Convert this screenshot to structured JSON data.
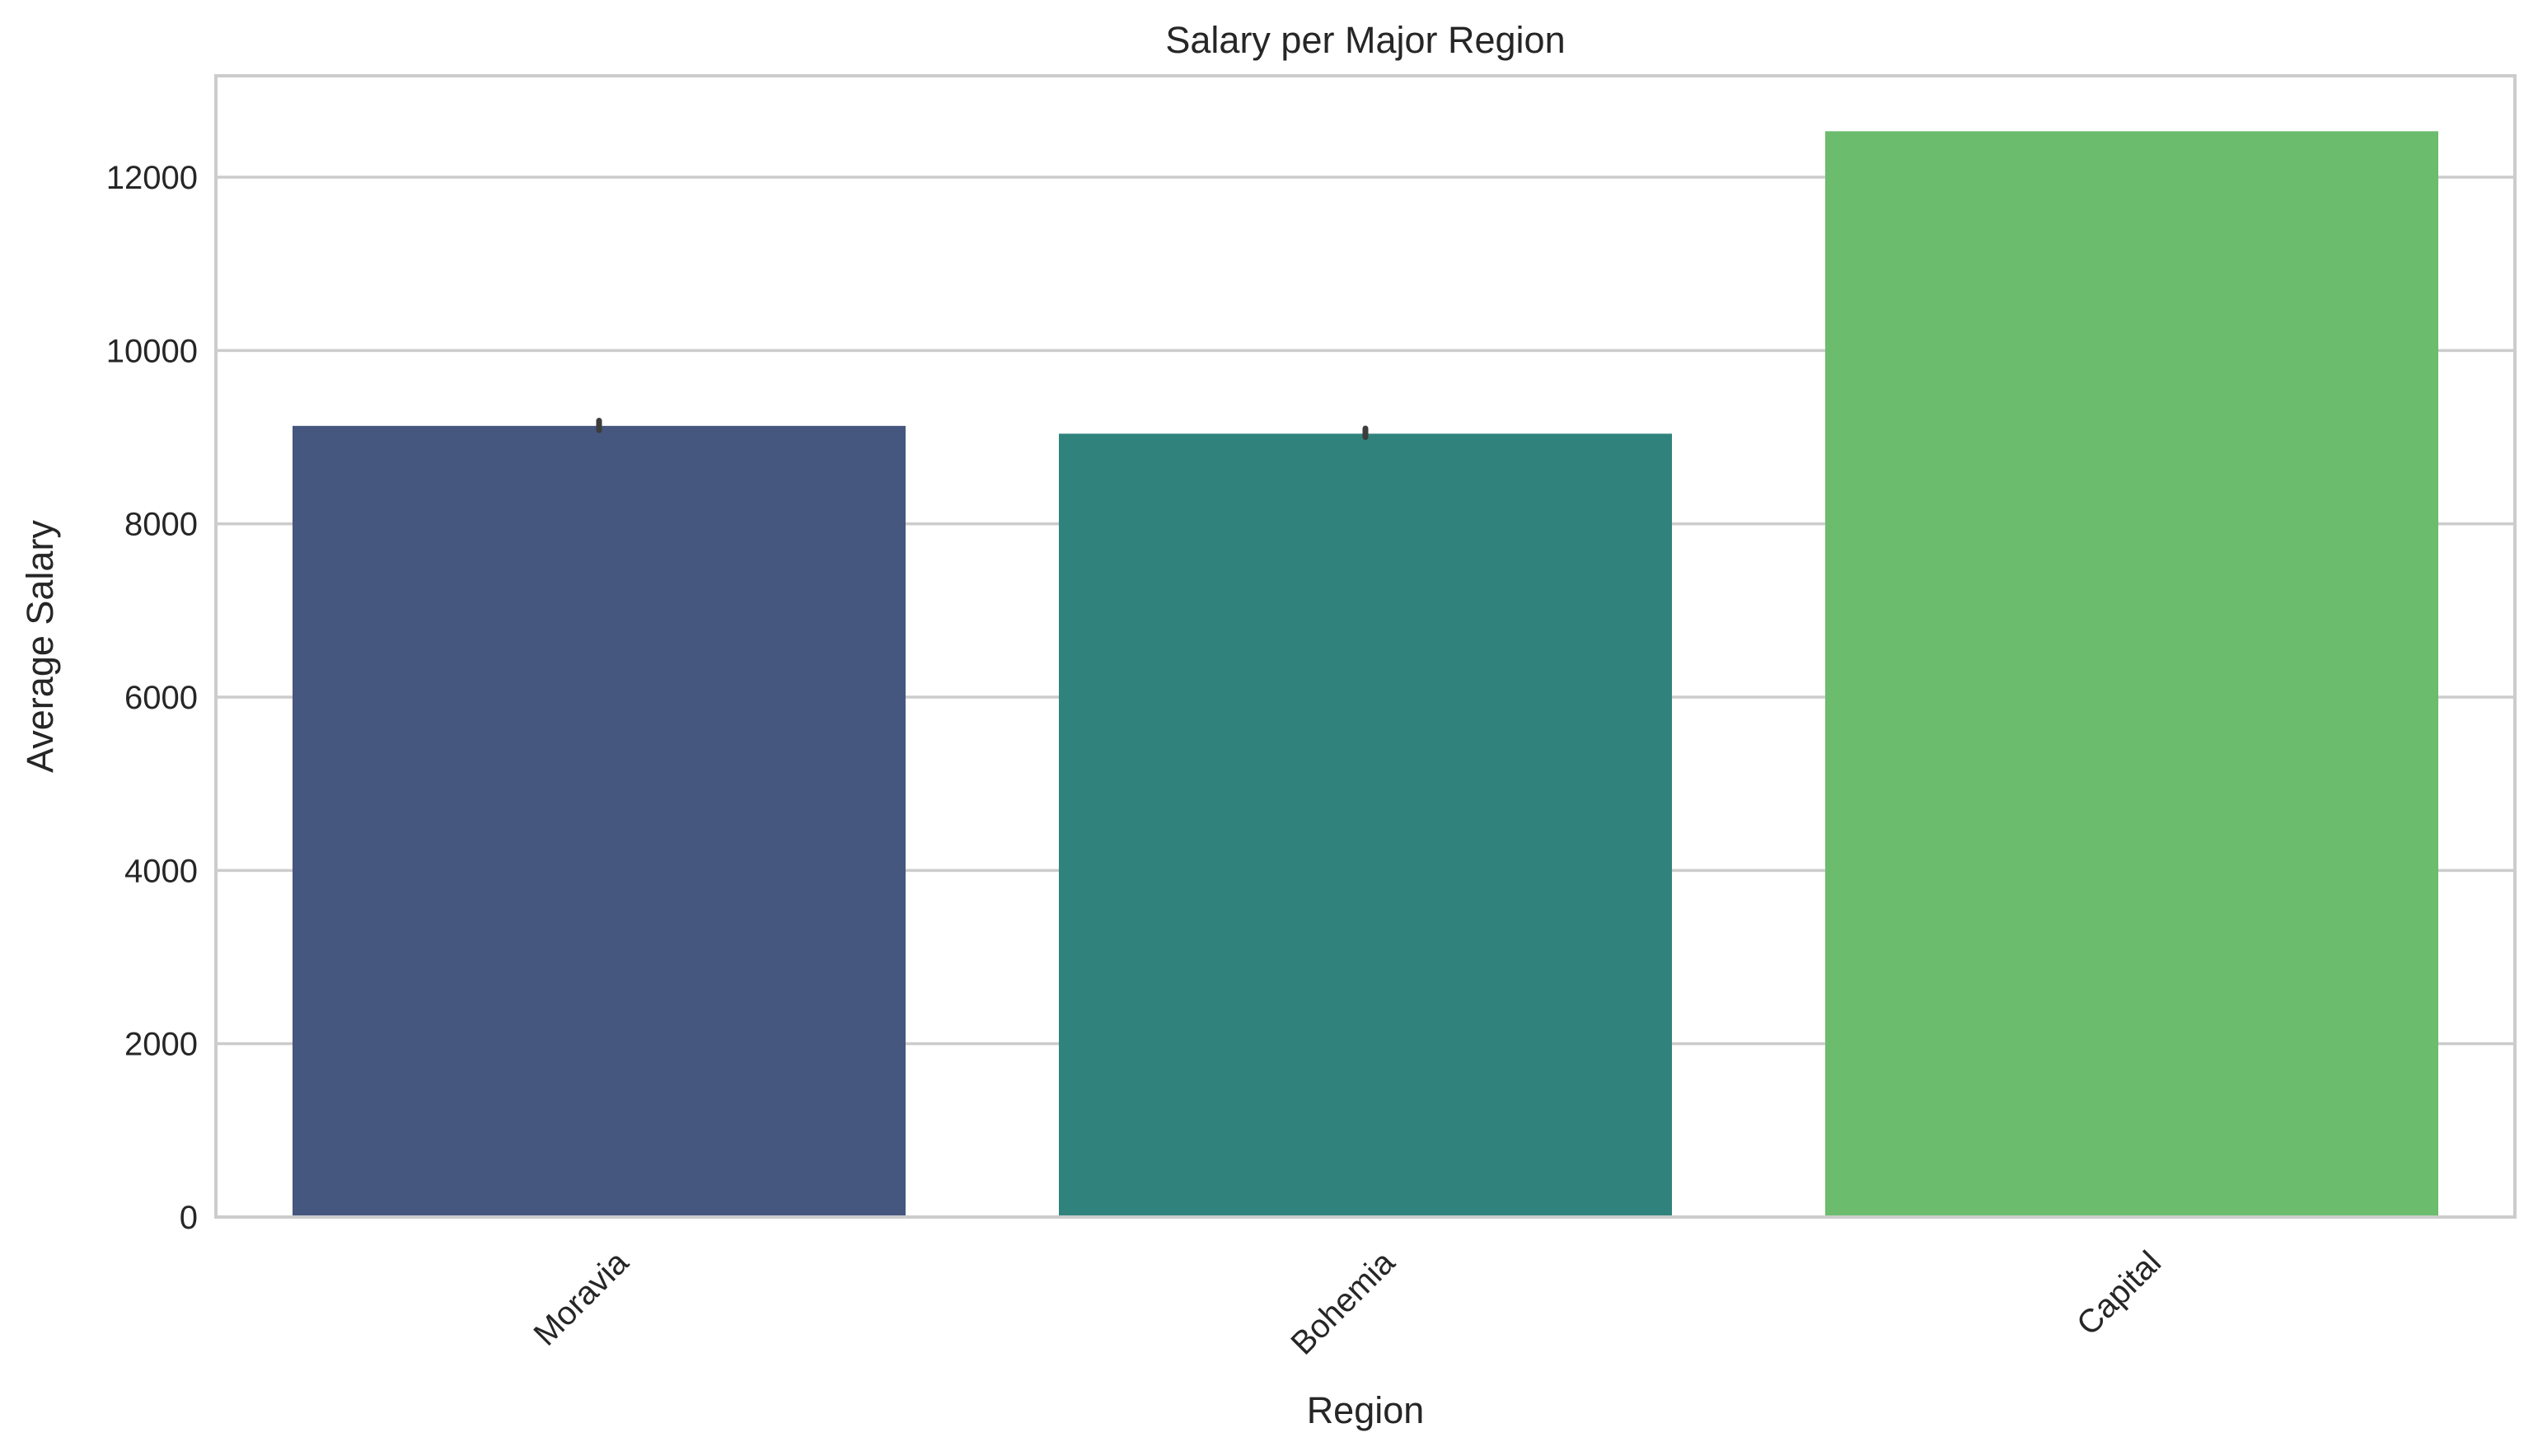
{
  "chart_data": {
    "type": "bar",
    "title": "Salary per Major Region",
    "xlabel": "Region",
    "ylabel": "Average Salary",
    "categories": [
      "Moravia",
      "Bohemia",
      "Capital"
    ],
    "values": [
      9130,
      9040,
      12530
    ],
    "error_bars": [
      {
        "low": 9080,
        "high": 9190
      },
      {
        "low": 9000,
        "high": 9100
      },
      null
    ],
    "colors": [
      "#46577f",
      "#30837d",
      "#6bbc6d"
    ],
    "error_bar_color": "#3d3d3d",
    "ylim": [
      0,
      13170
    ],
    "yticks": [
      0,
      2000,
      4000,
      6000,
      8000,
      10000,
      12000
    ],
    "ytick_labels": [
      "0",
      "2000",
      "4000",
      "6000",
      "8000",
      "10000",
      "12000"
    ],
    "grid": "horizontal",
    "grid_color": "#cccccc",
    "spine_color": "#cccccc"
  }
}
